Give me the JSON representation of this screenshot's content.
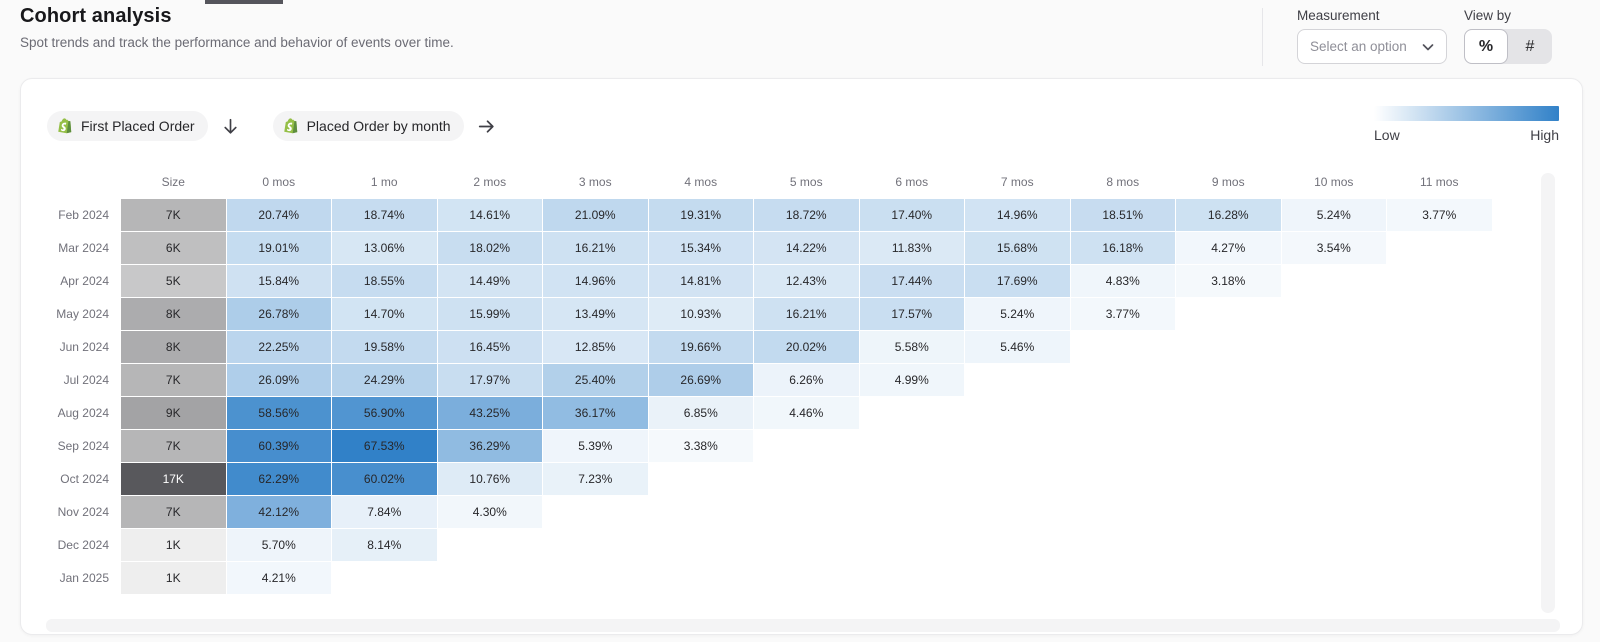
{
  "page": {
    "title": "Cohort analysis",
    "subtitle": "Spot trends and track the performance and behavior of events over time."
  },
  "controls": {
    "measurement_label": "Measurement",
    "measurement_placeholder": "Select an option",
    "view_by_label": "View by",
    "percent_symbol": "%",
    "count_symbol": "#"
  },
  "query": {
    "first_event": {
      "label": "First Placed Order",
      "icon": "shopify-bag"
    },
    "first_arrow_icon": "arrow-down",
    "return_event": {
      "label": "Placed Order by month",
      "icon": "shopify-bag"
    },
    "return_arrow_icon": "arrow-right"
  },
  "legend": {
    "low": "Low",
    "high": "High",
    "low_color": "#ffffff",
    "high_color": "#3181c8"
  },
  "chart_data": {
    "type": "heatmap",
    "unit": "%",
    "size_header": "Size",
    "columns": [
      "0 mos",
      "1 mo",
      "2 mos",
      "3 mos",
      "4 mos",
      "5 mos",
      "6 mos",
      "7 mos",
      "8 mos",
      "9 mos",
      "10 mos",
      "11 mos"
    ],
    "color_scale": {
      "min": 0,
      "max": 67.53,
      "low_color": "#ffffff",
      "high_color": "#3181c8"
    },
    "size_scale": {
      "min": 0,
      "max": 17,
      "low_color": "#f7f7f7",
      "high_color": "#58585c"
    },
    "rows": [
      {
        "cohort": "Feb 2024",
        "size": "7K",
        "size_value": 7,
        "values": [
          20.74,
          18.74,
          14.61,
          21.09,
          19.31,
          18.72,
          17.4,
          14.96,
          18.51,
          16.28,
          5.24,
          3.77
        ]
      },
      {
        "cohort": "Mar 2024",
        "size": "6K",
        "size_value": 6,
        "values": [
          19.01,
          13.06,
          18.02,
          16.21,
          15.34,
          14.22,
          11.83,
          15.68,
          16.18,
          4.27,
          3.54
        ]
      },
      {
        "cohort": "Apr 2024",
        "size": "5K",
        "size_value": 5,
        "values": [
          15.84,
          18.55,
          14.49,
          14.96,
          14.81,
          12.43,
          17.44,
          17.69,
          4.83,
          3.18
        ]
      },
      {
        "cohort": "May 2024",
        "size": "8K",
        "size_value": 8,
        "values": [
          26.78,
          14.7,
          15.99,
          13.49,
          10.93,
          16.21,
          17.57,
          5.24,
          3.77
        ]
      },
      {
        "cohort": "Jun 2024",
        "size": "8K",
        "size_value": 8,
        "values": [
          22.25,
          19.58,
          16.45,
          12.85,
          19.66,
          20.02,
          5.58,
          5.46
        ]
      },
      {
        "cohort": "Jul 2024",
        "size": "7K",
        "size_value": 7,
        "values": [
          26.09,
          24.29,
          17.97,
          25.4,
          26.69,
          6.26,
          4.99
        ]
      },
      {
        "cohort": "Aug 2024",
        "size": "9K",
        "size_value": 9,
        "values": [
          58.56,
          56.9,
          43.25,
          36.17,
          6.85,
          4.46
        ]
      },
      {
        "cohort": "Sep 2024",
        "size": "7K",
        "size_value": 7,
        "values": [
          60.39,
          67.53,
          36.29,
          5.39,
          3.38
        ]
      },
      {
        "cohort": "Oct 2024",
        "size": "17K",
        "size_value": 17,
        "values": [
          62.29,
          60.02,
          10.76,
          7.23
        ]
      },
      {
        "cohort": "Nov 2024",
        "size": "7K",
        "size_value": 7,
        "values": [
          42.12,
          7.84,
          4.3
        ]
      },
      {
        "cohort": "Dec 2024",
        "size": "1K",
        "size_value": 1,
        "values": [
          5.7,
          8.14
        ]
      },
      {
        "cohort": "Jan 2025",
        "size": "1K",
        "size_value": 1,
        "values": [
          4.21
        ]
      }
    ]
  }
}
